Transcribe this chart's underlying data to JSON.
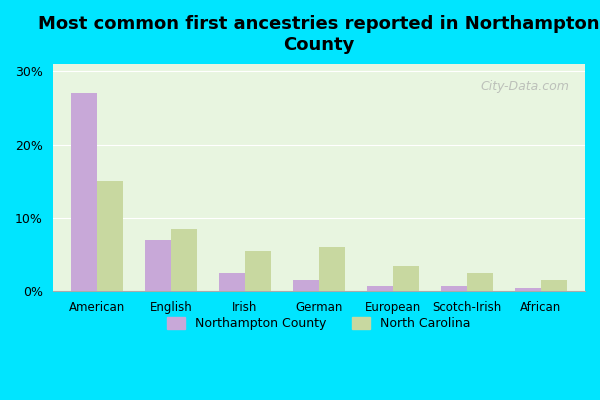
{
  "categories": [
    "American",
    "English",
    "Irish",
    "German",
    "European",
    "Scotch-Irish",
    "African"
  ],
  "northampton": [
    27.0,
    7.0,
    2.5,
    1.5,
    0.8,
    0.7,
    0.5
  ],
  "north_carolina": [
    15.0,
    8.5,
    5.5,
    6.0,
    3.5,
    2.5,
    1.5
  ],
  "northampton_color": "#c8a8d8",
  "nc_color": "#c8d8a0",
  "title": "Most common first ancestries reported in Northampton\nCounty",
  "bg_outer": "#00e5ff",
  "bg_plot": "#e8f5e0",
  "yticks": [
    0,
    10,
    20,
    30
  ],
  "ytick_labels": [
    "0%",
    "10%",
    "20%",
    "30%"
  ],
  "ylim": [
    0,
    31
  ],
  "legend_northampton": "Northampton County",
  "legend_nc": "North Carolina",
  "watermark": "City-Data.com"
}
